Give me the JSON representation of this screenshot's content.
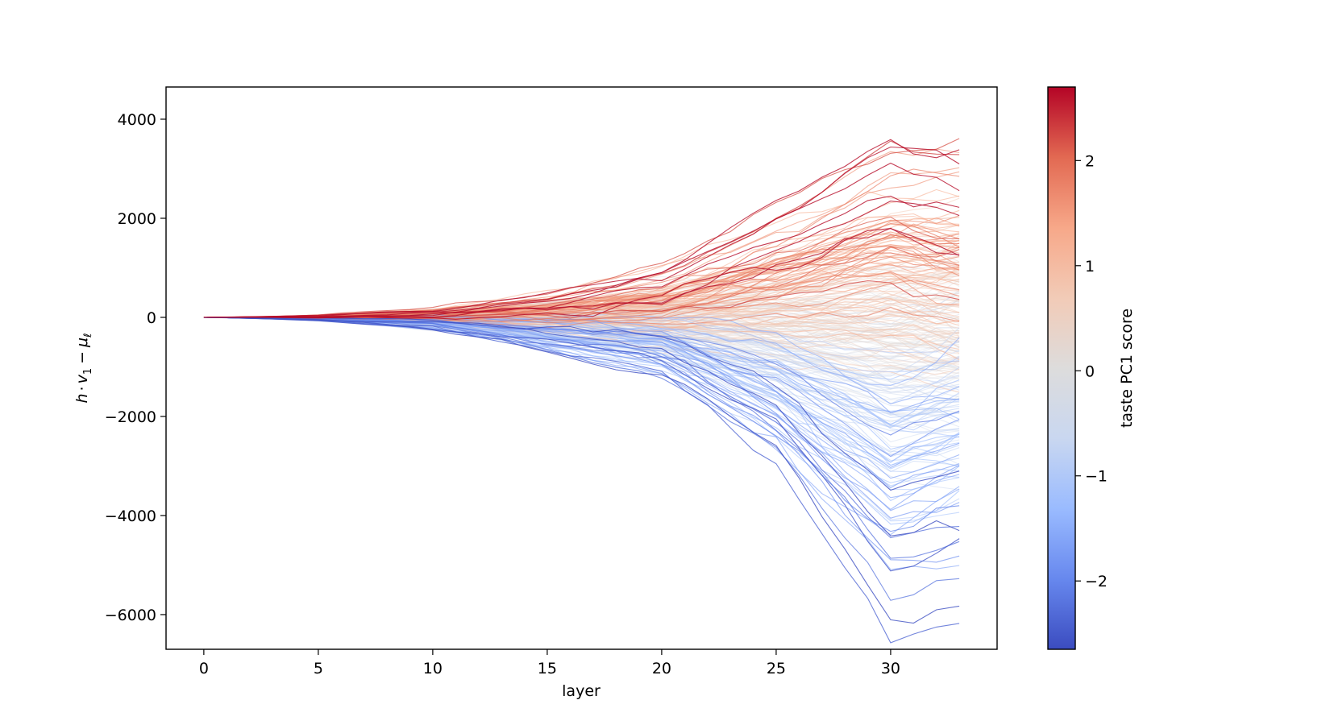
{
  "chart_data": {
    "type": "line",
    "title": "",
    "xlabel": "layer",
    "ylabel_parts": {
      "h": "h",
      "dot": "·",
      "v": "v",
      "v_sub": "1",
      "minus": "−",
      "mu": "μ",
      "mu_sub": "ℓ"
    },
    "xlim": [
      -1.65,
      34.65
    ],
    "ylim": [
      -6700,
      4650
    ],
    "xticks": [
      0,
      5,
      10,
      15,
      20,
      25,
      30
    ],
    "xtick_labels": [
      "0",
      "5",
      "10",
      "15",
      "20",
      "25",
      "30"
    ],
    "yticks": [
      -6000,
      -4000,
      -2000,
      0,
      2000,
      4000
    ],
    "ytick_labels": [
      "−6000",
      "−4000",
      "−2000",
      "0",
      "2000",
      "4000"
    ],
    "layers": [
      0,
      33
    ],
    "series_description": "approximately 300 per-sample trajectories over layers 0–33, each colored by its taste PC1 score",
    "representative_trajectories": [
      {
        "score": 2.6,
        "points": [
          [
            0,
            0
          ],
          [
            5,
            20
          ],
          [
            10,
            120
          ],
          [
            15,
            350
          ],
          [
            20,
            700
          ],
          [
            25,
            1700
          ],
          [
            30,
            2900
          ],
          [
            33,
            2600
          ]
        ]
      },
      {
        "score": 1.8,
        "points": [
          [
            0,
            0
          ],
          [
            5,
            10
          ],
          [
            10,
            60
          ],
          [
            15,
            200
          ],
          [
            20,
            500
          ],
          [
            25,
            1200
          ],
          [
            30,
            2000
          ],
          [
            33,
            1800
          ]
        ]
      },
      {
        "score": 1.0,
        "points": [
          [
            0,
            0
          ],
          [
            5,
            0
          ],
          [
            10,
            20
          ],
          [
            15,
            80
          ],
          [
            20,
            220
          ],
          [
            25,
            600
          ],
          [
            30,
            1000
          ],
          [
            33,
            900
          ]
        ]
      },
      {
        "score": 0.0,
        "points": [
          [
            0,
            0
          ],
          [
            5,
            -10
          ],
          [
            10,
            -30
          ],
          [
            15,
            -40
          ],
          [
            20,
            -80
          ],
          [
            25,
            -200
          ],
          [
            30,
            -300
          ],
          [
            33,
            -250
          ]
        ]
      },
      {
        "score": -1.0,
        "points": [
          [
            0,
            0
          ],
          [
            5,
            -20
          ],
          [
            10,
            -80
          ],
          [
            15,
            -250
          ],
          [
            20,
            -500
          ],
          [
            25,
            -1200
          ],
          [
            30,
            -2300
          ],
          [
            33,
            -2000
          ]
        ]
      },
      {
        "score": -2.0,
        "points": [
          [
            0,
            0
          ],
          [
            5,
            -30
          ],
          [
            10,
            -120
          ],
          [
            15,
            -400
          ],
          [
            20,
            -700
          ],
          [
            25,
            -1800
          ],
          [
            30,
            -3800
          ],
          [
            33,
            -3300
          ]
        ]
      },
      {
        "score": -2.5,
        "points": [
          [
            0,
            0
          ],
          [
            5,
            -40
          ],
          [
            10,
            -150
          ],
          [
            15,
            -450
          ],
          [
            20,
            -800
          ],
          [
            25,
            -2100
          ],
          [
            30,
            -5000
          ],
          [
            33,
            -4700
          ]
        ]
      }
    ],
    "colorbar": {
      "label": "taste PC1 score",
      "colormap": "coolwarm",
      "range": [
        -2.65,
        2.7
      ],
      "ticks": [
        -2,
        -1,
        0,
        1,
        2
      ],
      "tick_labels": [
        "−2",
        "−1",
        "0",
        "1",
        "2"
      ],
      "colors": [
        "#3b4cc0",
        "#6788ee",
        "#9abbff",
        "#c9d7f0",
        "#dddcdc",
        "#f2cbb7",
        "#f7a889",
        "#e26952",
        "#b40426"
      ]
    },
    "grid": false,
    "legend": "none"
  }
}
